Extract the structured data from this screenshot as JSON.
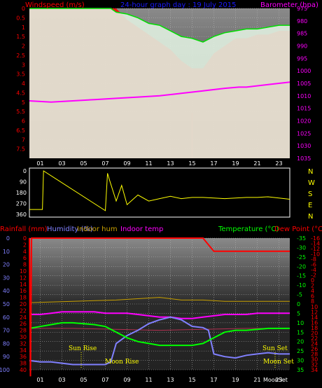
{
  "colors": {
    "background": "#000000",
    "windspeed": "#ff0000",
    "gust_fill": "#e0f0e0",
    "wind_avg": "#00dd00",
    "barometer": "#ff00ff",
    "direction": "#ffff00",
    "rainfall": "#ff0000",
    "humidity": "#8080ff",
    "indoor_hum": "#c8a000",
    "indoor_temp": "#ff00ff",
    "temperature": "#00ff00",
    "dew_point": "#ff0000",
    "events": "#ffff00"
  },
  "header": {
    "windspeed_label": "Windspeed (m/s)",
    "title": "24-hour graph day : 19 July 2015",
    "barometer_label": "Barometer (hpa)"
  },
  "lower_header": {
    "rainfall": "Rainfall (mm)",
    "humidity": "Humidity (%)",
    "indoor_hum": "Indoor hum",
    "indoor_temp": "Indoor temp",
    "temperature": "Temperature (°C)",
    "dew_point": "Dew Point (°C)"
  },
  "compass_letters": [
    "N",
    "W",
    "S",
    "E",
    "N"
  ],
  "events": {
    "sun_rise": "Sun Rise",
    "moon_rise": "Moon Rise",
    "sun_set": "Sun Set",
    "moon_set": "Moon Set",
    "moon_set_bottom": "MoonSet"
  },
  "chart_data": [
    {
      "type": "line",
      "name": "wind-and-barometer",
      "x_ticks": [
        "01",
        "03",
        "05",
        "07",
        "09",
        "11",
        "13",
        "15",
        "17",
        "19",
        "21",
        "23"
      ],
      "x_range": [
        0,
        24
      ],
      "y_left": {
        "label": "Windspeed (m/s)",
        "ticks": [
          "0",
          "0.5",
          "1",
          "1.5",
          "2",
          "2.5",
          "3",
          "3.5",
          "4",
          "4.5",
          "5",
          "5.5",
          "6",
          "6.5",
          "7",
          "7.5"
        ],
        "range": [
          0,
          8
        ]
      },
      "y_right": {
        "label": "Barometer (hpa)",
        "ticks": [
          "975",
          "980",
          "985",
          "990",
          "995",
          "1000",
          "1005",
          "1010",
          "1015",
          "1020",
          "1025",
          "1030",
          "1035"
        ],
        "range": [
          975,
          1035
        ]
      },
      "barometer": {
        "x": [
          0,
          2,
          4,
          6,
          8,
          10,
          12,
          14,
          16,
          18,
          19.3,
          20,
          22,
          24
        ],
        "y": [
          1012,
          1012.5,
          1012,
          1011.5,
          1011,
          1010.5,
          1010,
          1009,
          1008,
          1007,
          1006.5,
          1006.5,
          1005.5,
          1004.5
        ]
      },
      "wind_avg": {
        "x": [
          0,
          7.5,
          8,
          9,
          10,
          11,
          12,
          13,
          14,
          15,
          16,
          17,
          18,
          19,
          20,
          21,
          22,
          23,
          24
        ],
        "y": [
          0,
          0,
          0.2,
          0.3,
          0.5,
          0.8,
          0.9,
          1.2,
          1.5,
          1.6,
          1.8,
          1.5,
          1.3,
          1.2,
          1.1,
          1.1,
          1.0,
          0.9,
          0.9
        ]
      },
      "gust_envelope": {
        "x": [
          0,
          8,
          9,
          10,
          11,
          12,
          13,
          14,
          15,
          16,
          17,
          18,
          19,
          20,
          21,
          22,
          23,
          24
        ],
        "y": [
          0,
          0,
          0.6,
          1,
          1.4,
          1.8,
          2.2,
          2.8,
          3.2,
          3.2,
          2.4,
          2,
          1.6,
          1.6,
          1.4,
          1.4,
          1.2,
          1.2
        ]
      },
      "gust_peak": {
        "x": [
          15
        ],
        "y": [
          5.6
        ]
      },
      "gridlines": true
    },
    {
      "type": "scatter",
      "name": "wind-direction",
      "y_ticks": [
        "360",
        "270",
        "180",
        "90",
        "0"
      ],
      "y_range": [
        0,
        360
      ],
      "x_range": [
        0,
        24
      ],
      "direction": {
        "x": [
          0,
          0.5,
          1.2,
          1.3,
          7,
          7.2,
          7.4,
          8,
          8.5,
          9,
          10,
          11,
          12,
          13,
          14,
          15,
          16,
          17,
          18,
          19,
          20,
          21,
          22,
          23,
          24
        ],
        "y": [
          320,
          320,
          320,
          0,
          330,
          20,
          80,
          250,
          120,
          280,
          200,
          250,
          230,
          210,
          230,
          220,
          220,
          225,
          230,
          225,
          220,
          220,
          215,
          225,
          235
        ]
      }
    },
    {
      "type": "line",
      "name": "temperature-humidity-rain",
      "x_ticks": [
        "01",
        "03",
        "05",
        "07",
        "09",
        "11",
        "13",
        "15",
        "17",
        "19",
        "21",
        "23"
      ],
      "x_range": [
        0,
        24
      ],
      "y_left_rain": {
        "ticks": [
          "0",
          "2",
          "4",
          "6",
          "8",
          "10",
          "12",
          "14",
          "16",
          "18",
          "20",
          "22",
          "24",
          "26",
          "28",
          "30",
          "32",
          "34",
          "36",
          "38",
          "40"
        ],
        "range": [
          0,
          40
        ]
      },
      "y_left_humidity": {
        "ticks": [
          "0",
          "10",
          "20",
          "30",
          "40",
          "50",
          "60",
          "70",
          "80",
          "90",
          "100"
        ],
        "range": [
          0,
          100
        ]
      },
      "y_right_temperature": {
        "ticks": [
          "-35",
          "-30",
          "-25",
          "-20",
          "-15",
          "-10",
          "-5",
          "0",
          "5",
          "10",
          "15",
          "20",
          "25",
          "30",
          "35"
        ],
        "range": [
          -35,
          35
        ]
      },
      "y_right_dewpoint": {
        "ticks": [
          "-16",
          "-14",
          "-12",
          "-10",
          "-8",
          "-6",
          "-4",
          "-2",
          "0",
          "2",
          "4",
          "6",
          "8",
          "10",
          "12",
          "14",
          "16",
          "18",
          "20",
          "22",
          "24",
          "26",
          "28",
          "30",
          "32",
          "34"
        ],
        "range": [
          -16,
          34
        ]
      },
      "temperature": {
        "x": [
          0,
          1,
          2,
          3,
          4,
          5,
          6,
          7,
          8,
          9,
          10,
          11,
          12,
          13,
          14,
          15,
          16,
          17,
          18,
          19,
          19.3,
          20,
          21,
          22,
          23,
          24
        ],
        "y": [
          13,
          12,
          11,
          10,
          10,
          10.5,
          11,
          12,
          15,
          18,
          20,
          21,
          22,
          22,
          22,
          22,
          21,
          18,
          15,
          14,
          14,
          14,
          13.5,
          13,
          13,
          13
        ]
      },
      "dew_point": {
        "x": [
          0,
          1,
          2,
          3,
          4,
          5,
          6,
          7,
          8,
          9,
          10,
          11,
          12,
          13,
          14,
          15,
          16,
          17,
          18,
          19,
          20,
          21,
          22,
          23,
          24
        ],
        "y": [
          13,
          13,
          12.5,
          12,
          12,
          12,
          12,
          12.5,
          12.5,
          12.5,
          13,
          13.5,
          14,
          14,
          14.5,
          14.5,
          14,
          13.5,
          13,
          13,
          13,
          12.5,
          12.5,
          12.5,
          12.5
        ]
      },
      "humidity": {
        "x": [
          0,
          1,
          2,
          3,
          4,
          5,
          6,
          7,
          7.5,
          8,
          9,
          10,
          11,
          12,
          13,
          14,
          15,
          16,
          16.5,
          17,
          18,
          19,
          20,
          21,
          22,
          23,
          24
        ],
        "y": [
          93,
          94,
          94,
          95,
          96,
          96,
          96,
          96,
          94,
          80,
          74,
          70,
          65,
          62,
          60,
          62,
          67,
          68,
          70,
          88,
          90,
          91,
          89,
          88,
          87,
          88,
          88
        ]
      },
      "indoor_temp": {
        "x": [
          0,
          4,
          8,
          12,
          16,
          20,
          24
        ],
        "y": [
          13,
          13,
          13.5,
          14,
          13.5,
          13,
          13
        ]
      },
      "indoor_hum": {
        "x": [
          0,
          4,
          8,
          10,
          12,
          14,
          16,
          18,
          20,
          24
        ],
        "y": [
          49,
          48,
          47,
          46,
          45,
          47,
          47,
          48,
          48,
          48
        ]
      },
      "rainfall": {
        "x": [
          0,
          0.1,
          0.2,
          16,
          17,
          24
        ],
        "y": [
          0,
          42,
          0,
          0,
          4,
          4
        ]
      }
    }
  ]
}
